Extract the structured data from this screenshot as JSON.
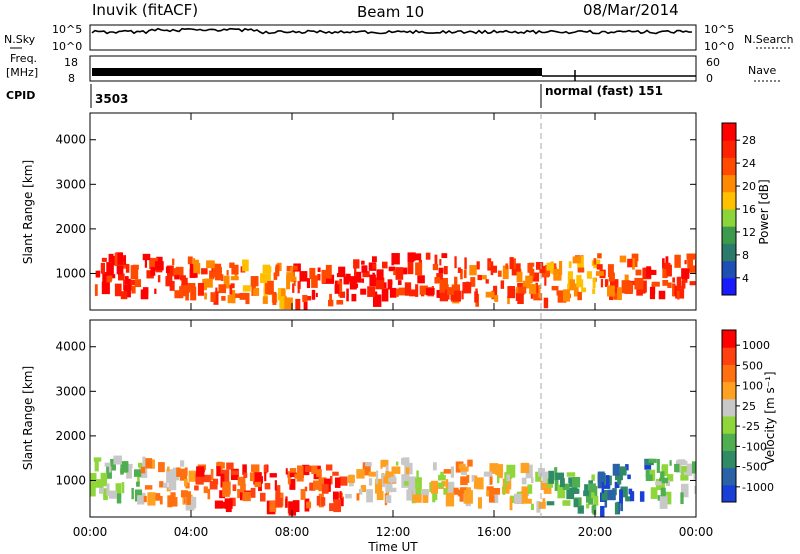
{
  "header": {
    "station": "Inuvik (fitACF)",
    "beam": "Beam 10",
    "date": "08/Mar/2014"
  },
  "top_panels": {
    "nsky_label": "N.Sky",
    "nsearch_label": "N.Search",
    "nsky_ticks": [
      "10^5",
      "10^0"
    ],
    "nsearch_ticks": [
      "10^5",
      "10^0"
    ],
    "freq_label_line1": "Freq.",
    "freq_label_line2": "[MHz]",
    "freq_ticks": [
      "18",
      "8"
    ],
    "nave_label": "Nave",
    "nave_ticks": [
      "60",
      "0"
    ],
    "cpid_label": "CPID",
    "cpid_first": "3503",
    "cpid_second": "normal (fast) 151"
  },
  "chart_data": [
    {
      "type": "heatmap",
      "title": "",
      "ylabel": "Slant Range [km]",
      "xlabel": "",
      "ylim": [
        180,
        4600
      ],
      "yticks": [
        1000,
        2000,
        3000,
        4000
      ],
      "xlim": [
        0,
        24
      ],
      "colorbar": {
        "label": "Power [dB]",
        "ticks": [
          "28",
          "24",
          "20",
          "16",
          "12",
          "8",
          "4"
        ],
        "colors": [
          "#1a1aff",
          "#1f4fb5",
          "#2c7a6a",
          "#3c9a4c",
          "#8bd43a",
          "#ffc000",
          "#ff8a00",
          "#ff4a00",
          "#ff2200",
          "#ff0000"
        ]
      },
      "series": [
        {
          "name": "",
          "x": [
            0,
            2,
            4,
            6,
            8,
            10,
            12,
            14,
            16,
            18,
            20,
            22,
            24
          ],
          "center_km": [
            1100,
            1000,
            950,
            900,
            800,
            850,
            1050,
            1050,
            950,
            900,
            1050,
            1050,
            1000
          ],
          "power_db": [
            26,
            24,
            22,
            20,
            24,
            28,
            26,
            22,
            22,
            20,
            22,
            24,
            26
          ]
        }
      ]
    },
    {
      "type": "heatmap",
      "title": "",
      "ylabel": "Slant Range [km]",
      "xlabel": "Time UT",
      "ylim": [
        180,
        4600
      ],
      "yticks": [
        1000,
        2000,
        3000,
        4000
      ],
      "xlim": [
        0,
        24
      ],
      "xticks": [
        "00:00",
        "04:00",
        "08:00",
        "12:00",
        "16:00",
        "20:00",
        "00:00"
      ],
      "colorbar": {
        "label": "Velocity [m s⁻¹]",
        "ticks": [
          "1000",
          "500",
          "100",
          "25",
          "-25",
          "-100",
          "-500",
          "-1000"
        ],
        "colors": [
          "#1a3fd6",
          "#2a62a8",
          "#2f8a66",
          "#4fae4f",
          "#8fd63a",
          "#c8c8c8",
          "#ffa020",
          "#ff7010",
          "#ff4010",
          "#ff0000"
        ]
      },
      "series": [
        {
          "name": "",
          "x": [
            0,
            2,
            4,
            6,
            8,
            10,
            12,
            14,
            16,
            18,
            20,
            22,
            24
          ],
          "center_km": [
            1200,
            1100,
            1000,
            950,
            900,
            950,
            1100,
            1100,
            1000,
            900,
            850,
            1100,
            1050
          ],
          "velocity_ms": [
            -25,
            100,
            500,
            500,
            500,
            100,
            25,
            100,
            25,
            -100,
            -500,
            -25,
            -25
          ]
        }
      ]
    }
  ],
  "colors": {
    "axis": "#000000",
    "dashed_marker": "#aaaaaa"
  }
}
